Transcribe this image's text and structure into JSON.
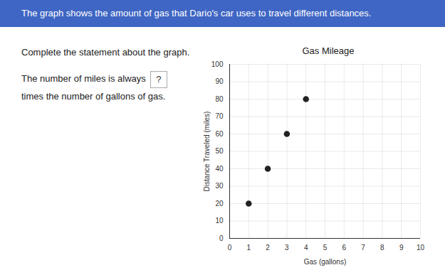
{
  "header": "The graph shows the amount of gas that Dario's car uses to travel different distances.",
  "instruction": "Complete the statement about the graph.",
  "statement": {
    "before": "The number of miles is always",
    "blank": "?",
    "after": "times the number of gallons of gas."
  },
  "chart_data": {
    "type": "scatter",
    "title": "Gas Mileage",
    "x_label": "Gas (gallons)",
    "y_label": "Distance Traveled (miles)",
    "x": [
      1,
      2,
      3,
      4
    ],
    "values": [
      20,
      40,
      60,
      80
    ],
    "color": "#222222",
    "marker": "circle",
    "xlim": [
      0,
      10
    ],
    "xticks": [
      0,
      1,
      2,
      3,
      4,
      5,
      6,
      7,
      8,
      9,
      10
    ],
    "ylim": [
      0,
      100
    ],
    "yticks": [
      0,
      10,
      20,
      30,
      40,
      50,
      60,
      70,
      80,
      90,
      100
    ],
    "grid": true
  }
}
